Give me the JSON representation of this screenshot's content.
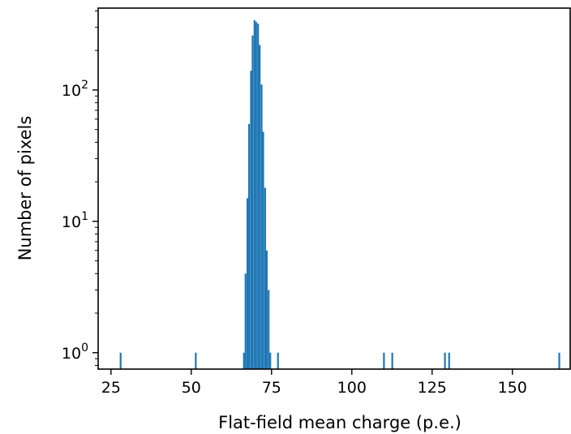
{
  "chart_data": {
    "type": "bar",
    "subtype": "histogram",
    "title": "",
    "xlabel": "Flat-field mean charge (p.e.)",
    "ylabel": "Number of pixels",
    "xlim": [
      21,
      168
    ],
    "ylim": [
      0.75,
      420
    ],
    "yscale": "log",
    "grid": false,
    "legend": "none",
    "bar_color": "#1f77b4",
    "bin_width": 0.55,
    "x_ticks": [
      {
        "value": 25,
        "label": "25"
      },
      {
        "value": 50,
        "label": "50"
      },
      {
        "value": 75,
        "label": "75"
      },
      {
        "value": 100,
        "label": "100"
      },
      {
        "value": 125,
        "label": "125"
      },
      {
        "value": 150,
        "label": "150"
      }
    ],
    "y_ticks": [
      {
        "value": 1,
        "base": "10",
        "exp": "0"
      },
      {
        "value": 10,
        "base": "10",
        "exp": "1"
      },
      {
        "value": 100,
        "base": "10",
        "exp": "2"
      }
    ],
    "bins": [
      {
        "x": 28.0,
        "count": 1
      },
      {
        "x": 51.4,
        "count": 1
      },
      {
        "x": 66.4,
        "count": 1
      },
      {
        "x": 66.9,
        "count": 4
      },
      {
        "x": 67.5,
        "count": 15
      },
      {
        "x": 68.0,
        "count": 55
      },
      {
        "x": 68.6,
        "count": 140
      },
      {
        "x": 69.1,
        "count": 260
      },
      {
        "x": 69.7,
        "count": 340
      },
      {
        "x": 70.2,
        "count": 330
      },
      {
        "x": 70.8,
        "count": 320
      },
      {
        "x": 71.3,
        "count": 220
      },
      {
        "x": 71.9,
        "count": 110
      },
      {
        "x": 72.4,
        "count": 48
      },
      {
        "x": 73.0,
        "count": 18
      },
      {
        "x": 73.5,
        "count": 6
      },
      {
        "x": 74.1,
        "count": 3
      },
      {
        "x": 74.6,
        "count": 1
      },
      {
        "x": 77.0,
        "count": 1
      },
      {
        "x": 110.0,
        "count": 1
      },
      {
        "x": 112.6,
        "count": 1
      },
      {
        "x": 129.0,
        "count": 1
      },
      {
        "x": 130.3,
        "count": 1
      },
      {
        "x": 164.6,
        "count": 1
      }
    ]
  }
}
